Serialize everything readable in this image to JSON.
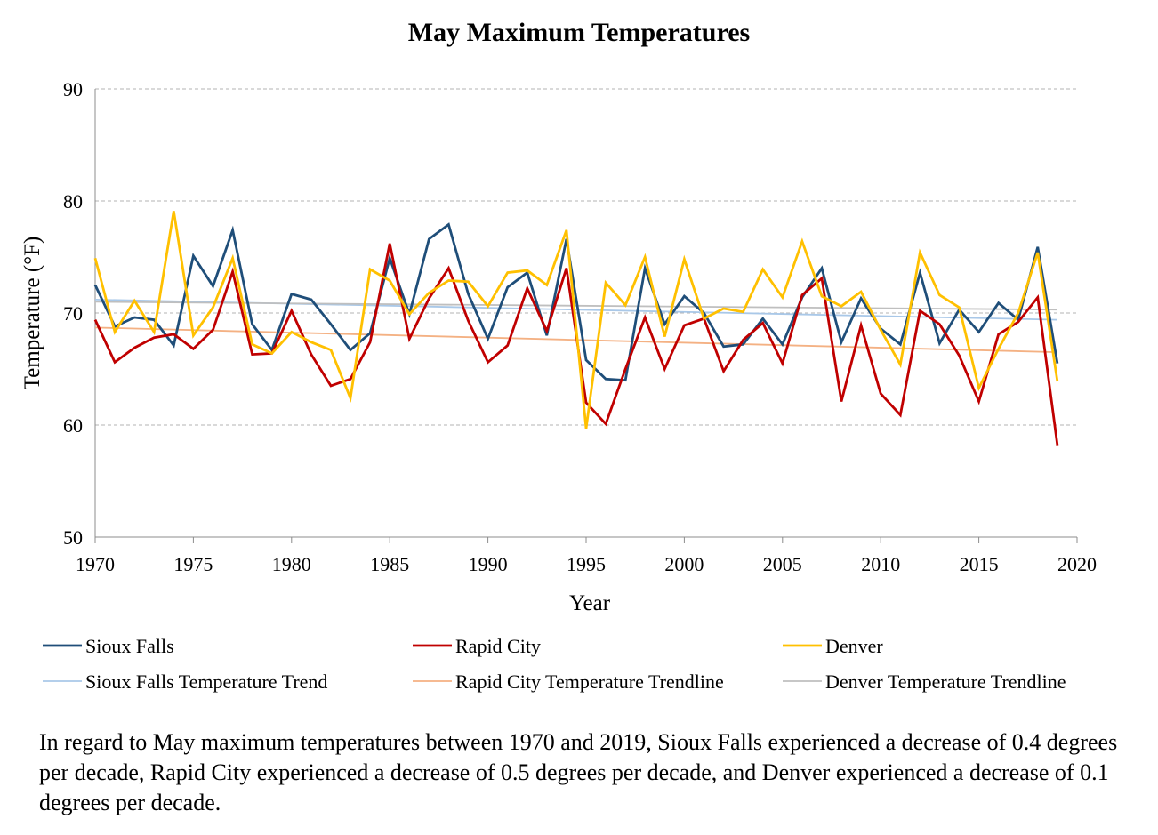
{
  "chart_data": {
    "type": "line",
    "title": "May Maximum Temperatures",
    "xlabel": "Year",
    "ylabel": "Temperature (°F)",
    "xlim": [
      1970,
      2020
    ],
    "ylim": [
      50,
      90
    ],
    "x_ticks": [
      "1970",
      "1975",
      "1980",
      "1985",
      "1990",
      "1995",
      "2000",
      "2005",
      "2010",
      "2015",
      "2020"
    ],
    "y_ticks": [
      "50",
      "60",
      "70",
      "80",
      "90"
    ],
    "grid": "horizontal-dashed",
    "legend_position": "bottom",
    "x": [
      1970,
      1971,
      1972,
      1973,
      1974,
      1975,
      1976,
      1977,
      1978,
      1979,
      1980,
      1981,
      1982,
      1983,
      1984,
      1985,
      1986,
      1987,
      1988,
      1989,
      1990,
      1991,
      1992,
      1993,
      1994,
      1995,
      1996,
      1997,
      1998,
      1999,
      2000,
      2001,
      2002,
      2003,
      2004,
      2005,
      2006,
      2007,
      2008,
      2009,
      2010,
      2011,
      2012,
      2013,
      2014,
      2015,
      2016,
      2017,
      2018,
      2019
    ],
    "series": [
      {
        "name": "Sioux Falls",
        "color": "#1f4e79",
        "kind": "data",
        "values": [
          72.5,
          68.8,
          69.6,
          69.4,
          67.1,
          75.1,
          72.4,
          77.4,
          69.0,
          66.7,
          71.7,
          71.2,
          69.0,
          66.7,
          68.2,
          74.9,
          69.9,
          76.6,
          77.9,
          71.7,
          67.7,
          72.3,
          73.6,
          68.0,
          76.6,
          65.8,
          64.1,
          64.0,
          74.0,
          69.0,
          71.5,
          70.0,
          67.0,
          67.2,
          69.5,
          67.2,
          71.4,
          74.0,
          67.4,
          71.3,
          68.6,
          67.2,
          73.6,
          67.3,
          70.3,
          68.3,
          70.9,
          69.4,
          75.9,
          65.5
        ]
      },
      {
        "name": "Rapid City",
        "color": "#c00000",
        "kind": "data",
        "values": [
          69.4,
          65.6,
          66.9,
          67.8,
          68.1,
          66.8,
          68.5,
          73.7,
          66.3,
          66.4,
          70.2,
          66.3,
          63.5,
          64.1,
          67.4,
          76.2,
          67.7,
          71.3,
          74.0,
          69.3,
          65.6,
          67.1,
          72.2,
          68.4,
          74.0,
          62.0,
          60.1,
          65.0,
          69.6,
          65.0,
          68.9,
          69.5,
          64.8,
          67.6,
          69.1,
          65.5,
          71.6,
          73.1,
          62.1,
          68.9,
          62.8,
          60.9,
          70.2,
          69.0,
          66.2,
          62.1,
          68.1,
          69.2,
          71.4,
          58.2
        ]
      },
      {
        "name": "Denver",
        "color": "#ffc000",
        "kind": "data",
        "values": [
          74.9,
          68.3,
          71.1,
          68.3,
          79.1,
          68.0,
          70.5,
          74.9,
          67.2,
          66.4,
          68.3,
          67.4,
          66.7,
          62.4,
          73.9,
          72.9,
          69.9,
          71.8,
          72.9,
          72.8,
          70.6,
          73.6,
          73.8,
          72.5,
          77.4,
          59.7,
          72.7,
          70.7,
          75.0,
          67.9,
          74.8,
          69.5,
          70.4,
          70.1,
          73.9,
          71.4,
          76.4,
          71.5,
          70.6,
          71.9,
          68.5,
          65.4,
          75.4,
          71.6,
          70.5,
          63.3,
          66.8,
          70.0,
          75.4,
          63.9
        ]
      },
      {
        "name": "Sioux Falls Temperature Trend",
        "color": "#a9c8e8",
        "kind": "trend",
        "x": [
          1970,
          2019
        ],
        "values": [
          71.2,
          69.4
        ]
      },
      {
        "name": "Rapid City Temperature Trendline",
        "color": "#f4b183",
        "kind": "trend",
        "x": [
          1970,
          2019
        ],
        "values": [
          68.7,
          66.5
        ]
      },
      {
        "name": "Denver Temperature Trendline",
        "color": "#bfbfbf",
        "kind": "trend",
        "x": [
          1970,
          2019
        ],
        "values": [
          71.0,
          70.3
        ]
      }
    ]
  },
  "caption": "In regard to May maximum temperatures between 1970 and 2019, Sioux Falls experienced a decrease of 0.4 degrees per decade, Rapid City experienced a decrease of 0.5 degrees per decade, and Denver experienced a decrease of 0.1 degrees per decade."
}
